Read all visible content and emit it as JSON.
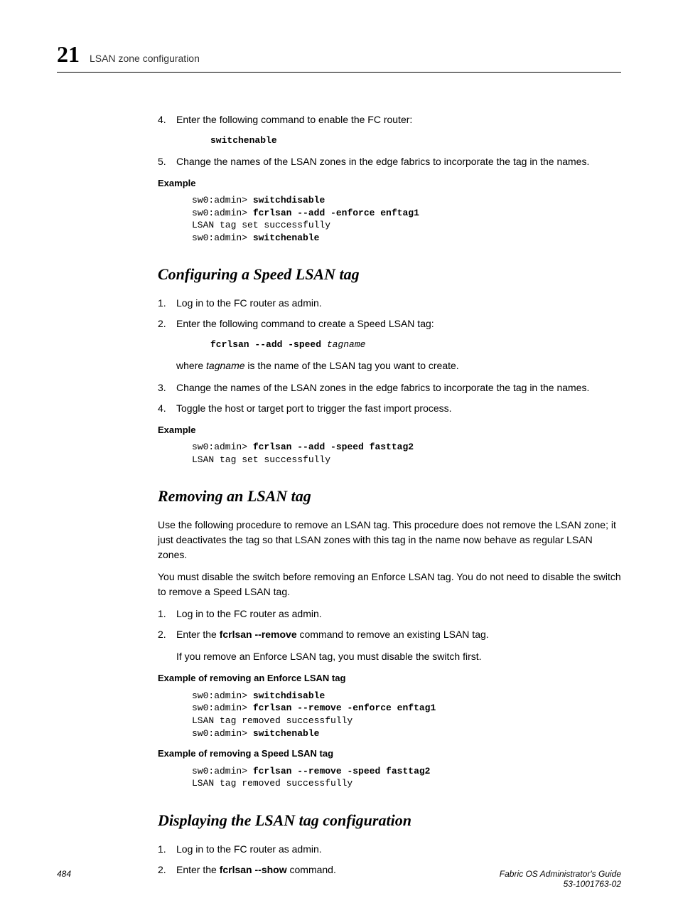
{
  "header": {
    "chapter_number": "21",
    "title": "LSAN zone configuration"
  },
  "section1": {
    "step4_num": "4.",
    "step4_text": "Enter the following command to enable the FC router:",
    "step4_cmd": "switchenable",
    "step5_num": "5.",
    "step5_text": "Change the names of the LSAN zones in the edge fabrics to incorporate the tag in the names.",
    "example_label": "Example",
    "ex_line1_prompt": "sw0:admin> ",
    "ex_line1_cmd": "switchdisable",
    "ex_line2_prompt": "sw0:admin> ",
    "ex_line2_cmd": "fcrlsan --add -enforce enftag1",
    "ex_line3": "LSAN tag set successfully",
    "ex_line4_prompt": "sw0:admin> ",
    "ex_line4_cmd": "switchenable"
  },
  "section2": {
    "heading": "Configuring a Speed LSAN tag",
    "step1_num": "1.",
    "step1_text": "Log in to the FC router as admin.",
    "step2_num": "2.",
    "step2_text": "Enter the following command to create a Speed LSAN tag:",
    "step2_cmd_bold": "fcrlsan --add -speed ",
    "step2_cmd_italic": "tagname",
    "step2_where_pre": "where ",
    "step2_where_italic": "tagname",
    "step2_where_post": " is the name of the LSAN tag you want to create.",
    "step3_num": "3.",
    "step3_text": "Change the names of the LSAN zones in the edge fabrics to incorporate the tag in the names.",
    "step4_num": "4.",
    "step4_text": "Toggle the host or target port to trigger the fast import process.",
    "example_label": "Example",
    "ex_line1_prompt": "sw0:admin> ",
    "ex_line1_cmd": "fcrlsan --add -speed fasttag2",
    "ex_line2": "LSAN tag set successfully"
  },
  "section3": {
    "heading": "Removing an LSAN tag",
    "para1": "Use the following procedure to remove an LSAN tag. This procedure does not remove the LSAN zone; it just deactivates the tag so that LSAN zones with this tag in the name now behave as regular LSAN zones.",
    "para2": "You must disable the switch before removing an Enforce LSAN tag. You do not need to disable the switch to remove a Speed LSAN tag.",
    "step1_num": "1.",
    "step1_text": "Log in to the FC router as admin.",
    "step2_num": "2.",
    "step2_pre": "Enter the ",
    "step2_bold": "fcrlsan --remove",
    "step2_post": " command to remove an existing LSAN tag.",
    "step2_note": "If you remove an Enforce LSAN tag, you must disable the switch first.",
    "example1_label": "Example of removing an Enforce LSAN tag",
    "ex1_line1_prompt": "sw0:admin> ",
    "ex1_line1_cmd": "switchdisable",
    "ex1_line2_prompt": "sw0:admin> ",
    "ex1_line2_cmd": "fcrlsan --remove -enforce enftag1",
    "ex1_line3": "LSAN tag removed successfully",
    "ex1_line4_prompt": "sw0:admin> ",
    "ex1_line4_cmd": "switchenable",
    "example2_label": "Example of removing a Speed LSAN tag",
    "ex2_line1_prompt": "sw0:admin> ",
    "ex2_line1_cmd": "fcrlsan --remove -speed fasttag2",
    "ex2_line2": "LSAN tag removed successfully"
  },
  "section4": {
    "heading": "Displaying the LSAN tag configuration",
    "step1_num": "1.",
    "step1_text": "Log in to the FC router as admin.",
    "step2_num": "2.",
    "step2_pre": "Enter the ",
    "step2_bold": "fcrlsan --show",
    "step2_post": " command."
  },
  "footer": {
    "page_number": "484",
    "doc_title": "Fabric OS Administrator's Guide",
    "doc_id": "53-1001763-02"
  }
}
